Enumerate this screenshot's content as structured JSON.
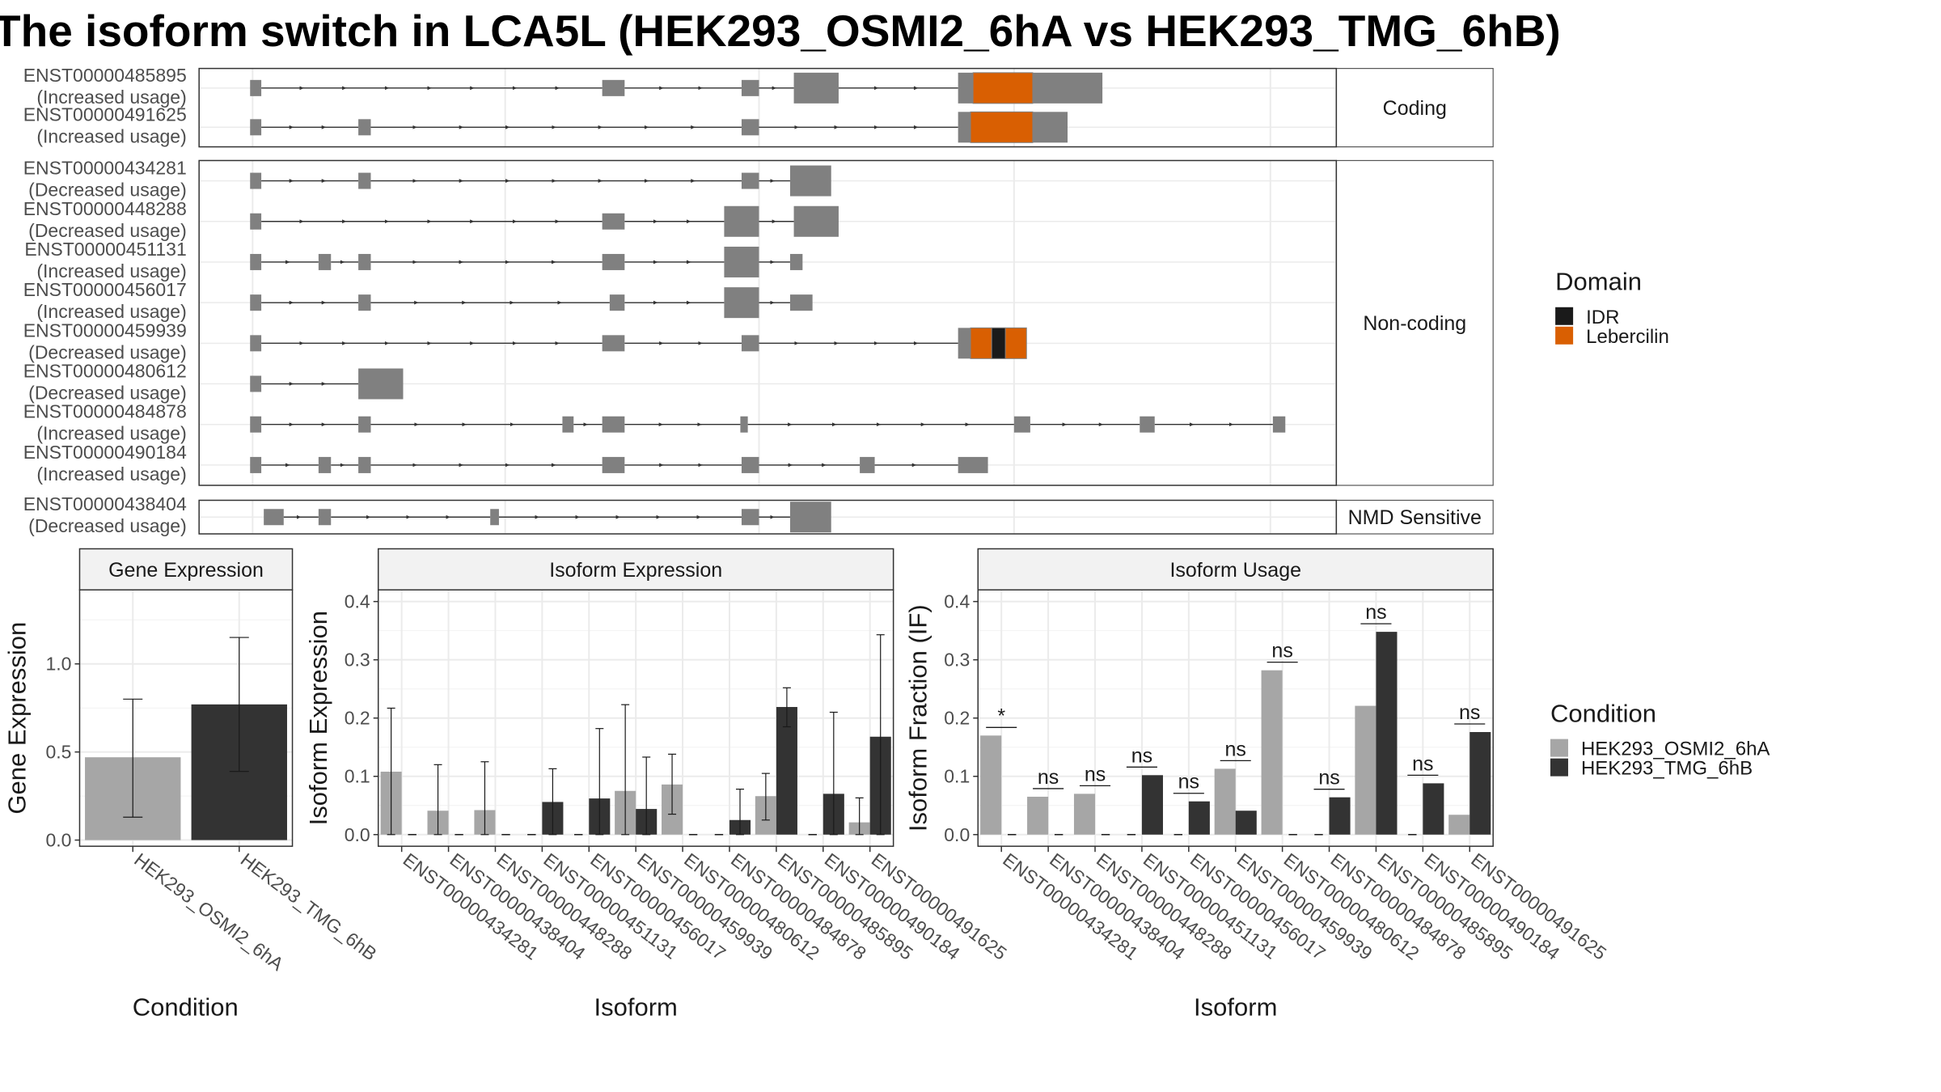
{
  "title": "The isoform switch in LCA5L (HEK293_OSMI2_6hA vs HEK293_TMG_6hB)",
  "colors": {
    "cond_a": "#a6a6a6",
    "cond_b": "#333333",
    "exon": "#808080",
    "idr": "#1a1a1a",
    "lebercilin": "#d95f02",
    "grid": "#ebebeb",
    "strip_bg": "#f2f2f2"
  },
  "structure": {
    "groups": [
      {
        "label": "Coding",
        "transcripts": [
          {
            "id": "ENST00000485895",
            "usage": "(Increased usage)",
            "exons": [
              [
                201,
                210
              ],
              [
                484,
                502
              ],
              [
                596,
                610
              ],
              [
                638,
                674
              ],
              [
                770,
                886
              ]
            ],
            "domains": [
              {
                "type": "Lebercilin",
                "from": 782,
                "to": 830
              }
            ]
          },
          {
            "id": "ENST00000491625",
            "usage": "(Increased usage)",
            "exons": [
              [
                201,
                210
              ],
              [
                288,
                298
              ],
              [
                596,
                610
              ],
              [
                770,
                858
              ]
            ],
            "domains": [
              {
                "type": "Lebercilin",
                "from": 780,
                "to": 830
              }
            ]
          }
        ]
      },
      {
        "label": "Non-coding",
        "transcripts": [
          {
            "id": "ENST00000434281",
            "usage": "(Decreased usage)",
            "exons": [
              [
                201,
                210
              ],
              [
                288,
                298
              ],
              [
                596,
                610
              ],
              [
                635,
                668
              ]
            ],
            "domains": []
          },
          {
            "id": "ENST00000448288",
            "usage": "(Decreased usage)",
            "exons": [
              [
                201,
                210
              ],
              [
                484,
                502
              ],
              [
                582,
                610
              ],
              [
                638,
                674
              ]
            ],
            "domains": []
          },
          {
            "id": "ENST00000451131",
            "usage": "(Increased usage)",
            "exons": [
              [
                201,
                210
              ],
              [
                256,
                266
              ],
              [
                288,
                298
              ],
              [
                484,
                502
              ],
              [
                582,
                610
              ],
              [
                635,
                645
              ]
            ],
            "domains": []
          },
          {
            "id": "ENST00000456017",
            "usage": "(Increased usage)",
            "exons": [
              [
                201,
                210
              ],
              [
                288,
                298
              ],
              [
                490,
                502
              ],
              [
                582,
                610
              ],
              [
                635,
                653
              ]
            ],
            "domains": []
          },
          {
            "id": "ENST00000459939",
            "usage": "(Decreased usage)",
            "exons": [
              [
                201,
                210
              ],
              [
                484,
                502
              ],
              [
                596,
                610
              ],
              [
                770,
                825
              ]
            ],
            "domains": [
              {
                "type": "Lebercilin",
                "from": 780,
                "to": 825
              },
              {
                "type": "IDR",
                "from": 797,
                "to": 808
              }
            ]
          },
          {
            "id": "ENST00000480612",
            "usage": "(Decreased usage)",
            "exons": [
              [
                201,
                210
              ],
              [
                288,
                324
              ]
            ],
            "domains": []
          },
          {
            "id": "ENST00000484878",
            "usage": "(Increased usage)",
            "exons": [
              [
                201,
                210
              ],
              [
                288,
                298
              ],
              [
                452,
                461
              ],
              [
                484,
                502
              ],
              [
                595,
                601
              ],
              [
                815,
                828
              ],
              [
                916,
                928
              ],
              [
                1023,
                1033
              ]
            ],
            "domains": []
          },
          {
            "id": "ENST00000490184",
            "usage": "(Increased usage)",
            "exons": [
              [
                201,
                210
              ],
              [
                256,
                266
              ],
              [
                288,
                298
              ],
              [
                484,
                502
              ],
              [
                596,
                610
              ],
              [
                691,
                703
              ],
              [
                770,
                794
              ]
            ],
            "domains": []
          }
        ]
      },
      {
        "label": "NMD Sensitive",
        "transcripts": [
          {
            "id": "ENST00000438404",
            "usage": "(Decreased usage)",
            "exons": [
              [
                212,
                228
              ],
              [
                256,
                266
              ],
              [
                394,
                401
              ],
              [
                596,
                610
              ],
              [
                635,
                668
              ]
            ],
            "domains": []
          }
        ]
      }
    ]
  },
  "legend_domain": {
    "title": "Domain",
    "items": [
      {
        "label": "IDR",
        "color": "#1a1a1a"
      },
      {
        "label": "Lebercilin",
        "color": "#d95f02"
      }
    ]
  },
  "legend_condition": {
    "title": "Condition",
    "items": [
      {
        "label": "HEK293_OSMI2_6hA",
        "color": "#a6a6a6"
      },
      {
        "label": "HEK293_TMG_6hB",
        "color": "#333333"
      }
    ]
  },
  "chart_data": [
    {
      "type": "bar",
      "title": "Gene Expression",
      "xlabel": "Condition",
      "ylabel": "Gene Expression",
      "categories": [
        "HEK293_OSMI2_6hA",
        "HEK293_TMG_6hB"
      ],
      "values": [
        0.47,
        0.77
      ],
      "error_low": [
        0.13,
        0.39
      ],
      "error_high": [
        0.8,
        1.15
      ],
      "ylim": [
        -0.035,
        1.42
      ],
      "yticks": [
        0.0,
        0.5,
        1.0
      ],
      "ytick_labels": [
        "0.0",
        "0.5",
        "1.0"
      ]
    },
    {
      "type": "bar",
      "title": "Isoform Expression",
      "xlabel": "Isoform",
      "ylabel": "Isoform Expression",
      "categories": [
        "ENST00000434281",
        "ENST00000438404",
        "ENST00000448288",
        "ENST00000451131",
        "ENST00000456017",
        "ENST00000459939",
        "ENST00000480612",
        "ENST00000484878",
        "ENST00000485895",
        "ENST00000490184",
        "ENST00000491625"
      ],
      "series": [
        {
          "name": "HEK293_OSMI2_6hA",
          "values": [
            0.108,
            0.041,
            0.042,
            0.0,
            0.0,
            0.075,
            0.086,
            0.0,
            0.066,
            0.0,
            0.021
          ],
          "error_low": [
            0.0,
            0.0,
            0.0,
            0.0,
            0.0,
            0.0,
            0.035,
            0.0,
            0.025,
            0.0,
            0.0
          ],
          "error_high": [
            0.217,
            0.12,
            0.125,
            0.0,
            0.0,
            0.223,
            0.138,
            0.0,
            0.105,
            0.0,
            0.063
          ]
        },
        {
          "name": "HEK293_TMG_6hB",
          "values": [
            0.0,
            0.0,
            0.0,
            0.056,
            0.062,
            0.044,
            0.0,
            0.025,
            0.219,
            0.07,
            0.168
          ],
          "error_low": [
            0.0,
            0.0,
            0.0,
            0.0,
            0.0,
            0.0,
            0.0,
            0.0,
            0.185,
            0.0,
            0.0
          ],
          "error_high": [
            0.0,
            0.0,
            0.0,
            0.113,
            0.182,
            0.133,
            0.0,
            0.078,
            0.252,
            0.21,
            0.343
          ]
        }
      ],
      "ylim": [
        -0.02,
        0.42
      ],
      "yticks": [
        0.0,
        0.1,
        0.2,
        0.3,
        0.4
      ],
      "ytick_labels": [
        "0.0",
        "0.1",
        "0.2",
        "0.3",
        "0.4"
      ]
    },
    {
      "type": "bar",
      "title": "Isoform Usage",
      "xlabel": "Isoform",
      "ylabel": "Isoform Fraction (IF)",
      "categories": [
        "ENST00000434281",
        "ENST00000438404",
        "ENST00000448288",
        "ENST00000451131",
        "ENST00000456017",
        "ENST00000459939",
        "ENST00000480612",
        "ENST00000484878",
        "ENST00000485895",
        "ENST00000490184",
        "ENST00000491625"
      ],
      "series": [
        {
          "name": "HEK293_OSMI2_6hA",
          "values": [
            0.17,
            0.065,
            0.07,
            0.0,
            0.0,
            0.113,
            0.282,
            0.0,
            0.221,
            0.0,
            0.034
          ]
        },
        {
          "name": "HEK293_TMG_6hB",
          "values": [
            0.0,
            0.0,
            0.0,
            0.102,
            0.057,
            0.041,
            0.0,
            0.064,
            0.348,
            0.088,
            0.176
          ]
        }
      ],
      "significance": [
        "*",
        "ns",
        "ns",
        "ns",
        "ns",
        "ns",
        "ns",
        "ns",
        "ns",
        "ns",
        "ns"
      ],
      "ylim": [
        -0.02,
        0.42
      ],
      "yticks": [
        0.0,
        0.1,
        0.2,
        0.3,
        0.4
      ],
      "ytick_labels": [
        "0.0",
        "0.1",
        "0.2",
        "0.3",
        "0.4"
      ]
    }
  ]
}
